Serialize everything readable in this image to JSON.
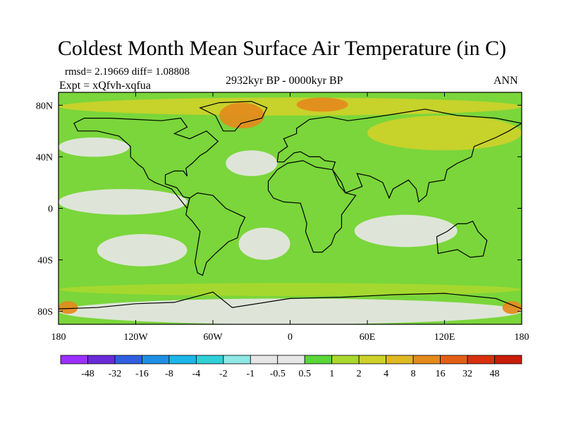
{
  "chart_data": {
    "type": "heatmap",
    "title": "Coldest Month Mean Surface Air Temperature (in C)",
    "stats_left": "rmsd= 2.19669  diff= 1.08808",
    "experiment": "Expt = xQfvh-xqfua",
    "period": "2932kyr BP - 0000kyr BP",
    "season": "ANN",
    "x_ticks": [
      {
        "value": -180,
        "label": "180"
      },
      {
        "value": -120,
        "label": "120W"
      },
      {
        "value": -60,
        "label": "60W"
      },
      {
        "value": 0,
        "label": "0"
      },
      {
        "value": 60,
        "label": "60E"
      },
      {
        "value": 120,
        "label": "120E"
      },
      {
        "value": 180,
        "label": "180"
      }
    ],
    "y_ticks": [
      {
        "value": 80,
        "label": "80N"
      },
      {
        "value": 40,
        "label": "40N"
      },
      {
        "value": 0,
        "label": "0"
      },
      {
        "value": -40,
        "label": "40S"
      },
      {
        "value": -80,
        "label": "80S"
      }
    ],
    "xlim": [
      -180,
      180
    ],
    "ylim": [
      -90,
      90
    ],
    "colorbar": {
      "labels": [
        "-48",
        "-32",
        "-16",
        "-8",
        "-4",
        "-2",
        "-1",
        "-0.5",
        "0.5",
        "1",
        "2",
        "4",
        "8",
        "16",
        "32",
        "48"
      ],
      "colors": [
        "#9b30ff",
        "#6a2bd9",
        "#2f5fe0",
        "#1f8fe6",
        "#1cb6e8",
        "#2fd0d6",
        "#8ee8e6",
        "#e6e6e6",
        "#e6e6e6",
        "#5ad63a",
        "#a8d82e",
        "#cdd12a",
        "#e0b823",
        "#e48a1c",
        "#e35f16",
        "#d9300e",
        "#c81d08"
      ]
    },
    "regions": [
      {
        "name": "arctic-warm-band",
        "lon": [
          -180,
          180
        ],
        "lat": [
          72,
          86
        ],
        "level": 4
      },
      {
        "name": "greenland-hotspot",
        "lon": [
          -55,
          -20
        ],
        "lat": [
          62,
          82
        ],
        "level": 16
      },
      {
        "name": "scandinavia-warm",
        "lon": [
          5,
          45
        ],
        "lat": [
          75,
          86
        ],
        "level": 16
      },
      {
        "name": "siberia-band",
        "lon": [
          60,
          180
        ],
        "lat": [
          45,
          72
        ],
        "level": 4
      },
      {
        "name": "north-pacific-neutral",
        "lon": [
          -180,
          -125
        ],
        "lat": [
          40,
          55
        ],
        "level": 0
      },
      {
        "name": "north-atlantic-neutral",
        "lon": [
          -50,
          -10
        ],
        "lat": [
          25,
          45
        ],
        "level": 0
      },
      {
        "name": "tropical-pacific-neutral",
        "lon": [
          -180,
          -80
        ],
        "lat": [
          -5,
          15
        ],
        "level": 0
      },
      {
        "name": "south-pacific-neutral",
        "lon": [
          -150,
          -80
        ],
        "lat": [
          -45,
          -20
        ],
        "level": 0
      },
      {
        "name": "south-atlantic-neutral",
        "lon": [
          -40,
          0
        ],
        "lat": [
          -40,
          -15
        ],
        "level": 0
      },
      {
        "name": "indian-ocean-neutral",
        "lon": [
          50,
          130
        ],
        "lat": [
          -30,
          -5
        ],
        "level": 0
      },
      {
        "name": "southern-ocean-band",
        "lon": [
          -180,
          180
        ],
        "lat": [
          -68,
          -58
        ],
        "level": 2
      },
      {
        "name": "antarctic-coast-neutral",
        "lon": [
          -180,
          180
        ],
        "lat": [
          -90,
          -70
        ],
        "level": 0
      },
      {
        "name": "ross-sea-hotspot",
        "lon": [
          -180,
          -165
        ],
        "lat": [
          -82,
          -72
        ],
        "level": 16
      },
      {
        "name": "weddell-hotspot",
        "lon": [
          165,
          180
        ],
        "lat": [
          -82,
          -72
        ],
        "level": 16
      }
    ]
  }
}
